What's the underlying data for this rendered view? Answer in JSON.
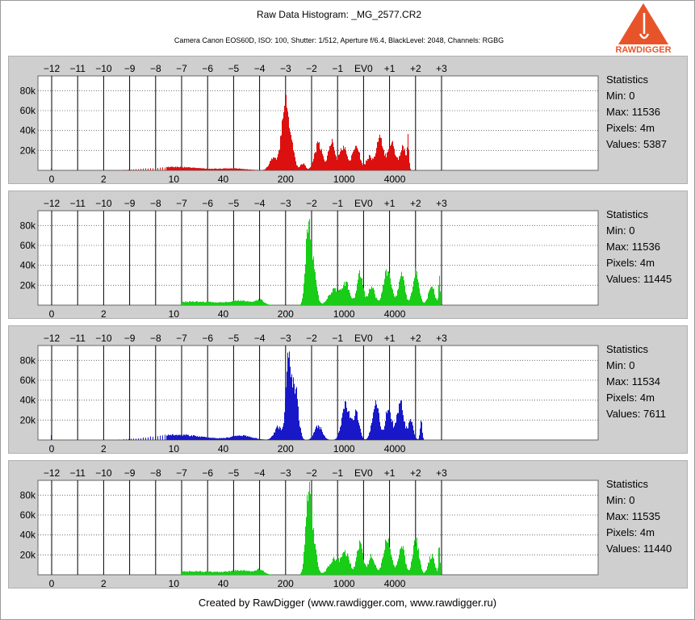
{
  "header": {
    "title": "Raw Data Histogram: _MG_2577.CR2",
    "subtitle": "Camera Canon EOS60D, ISO: 100, Shutter: 1/512, Aperture f/6.4, BlackLevel: 2048, Channels: RGBG"
  },
  "logo": {
    "text": "RAWDIGGER",
    "colors": {
      "triangle": "#e8542a",
      "text": "#e8542a"
    }
  },
  "footer": {
    "text": "Created by RawDigger (www.rawdigger.com, www.rawdigger.ru)"
  },
  "stats_labels": {
    "title": "Statistics",
    "min": "Min:",
    "max": "Max:",
    "pixels": "Pixels:",
    "values": "Values:"
  },
  "chart_data": [
    {
      "type": "bar",
      "channel": "R",
      "color": "#dd1010",
      "ev_ticks": [
        "−12",
        "−11",
        "−10",
        "−9",
        "−8",
        "−7",
        "−6",
        "−5",
        "−4",
        "−3",
        "−2",
        "−1",
        "EV0",
        "+1",
        "+2",
        "+3"
      ],
      "x_ticks": [
        "0",
        "2",
        "10",
        "40",
        "200",
        "1000",
        "4000"
      ],
      "y_ticks": [
        "20k",
        "40k",
        "60k",
        "80k"
      ],
      "ylim": [
        0,
        90000
      ],
      "stats": {
        "min": "0",
        "max": "11536",
        "pixels": "4m",
        "values": "5387"
      },
      "peaks": [
        {
          "ev": -12.0,
          "count": 4000,
          "w": 0.05
        },
        {
          "ev": -7.3,
          "count": 4000,
          "w": 1.0
        },
        {
          "ev": -5.0,
          "count": 2000,
          "w": 0.5
        },
        {
          "ev": -3.5,
          "count": 14000,
          "w": 0.14
        },
        {
          "ev": -3.05,
          "count": 78000,
          "w": 0.13
        },
        {
          "ev": -2.8,
          "count": 30000,
          "w": 0.12
        },
        {
          "ev": -2.35,
          "count": 8000,
          "w": 0.1
        },
        {
          "ev": -1.75,
          "count": 30000,
          "w": 0.15
        },
        {
          "ev": -1.25,
          "count": 33000,
          "w": 0.12
        },
        {
          "ev": -0.8,
          "count": 27000,
          "w": 0.15
        },
        {
          "ev": -0.3,
          "count": 32000,
          "w": 0.13
        },
        {
          "ev": 0.2,
          "count": 16000,
          "w": 0.12
        },
        {
          "ev": 0.6,
          "count": 37000,
          "w": 0.13
        },
        {
          "ev": 1.05,
          "count": 33000,
          "w": 0.14
        },
        {
          "ev": 1.5,
          "count": 28000,
          "w": 0.12
        },
        {
          "ev": 1.7,
          "count": 30000,
          "w": 0.03
        }
      ],
      "start_ev": -12.0,
      "end_ev": 1.8
    },
    {
      "type": "bar",
      "channel": "G",
      "color": "#18cc18",
      "ev_ticks": [
        "−12",
        "−11",
        "−10",
        "−9",
        "−8",
        "−7",
        "−6",
        "−5",
        "−4",
        "−3",
        "−2",
        "−1",
        "EV0",
        "+1",
        "+2",
        "+3"
      ],
      "x_ticks": [
        "0",
        "2",
        "10",
        "40",
        "200",
        "1000",
        "4000"
      ],
      "y_ticks": [
        "20k",
        "40k",
        "60k",
        "80k"
      ],
      "ylim": [
        0,
        90000
      ],
      "stats": {
        "min": "0",
        "max": "11536",
        "pixels": "4m",
        "values": "11445"
      },
      "peaks": [
        {
          "ev": -6.5,
          "count": 4000,
          "w": 1.2
        },
        {
          "ev": -4.7,
          "count": 4000,
          "w": 0.4
        },
        {
          "ev": -4.0,
          "count": 5000,
          "w": 0.15
        },
        {
          "ev": -2.15,
          "count": 88000,
          "w": 0.1
        },
        {
          "ev": -1.95,
          "count": 40000,
          "w": 0.12
        },
        {
          "ev": -1.15,
          "count": 18000,
          "w": 0.2
        },
        {
          "ev": -0.7,
          "count": 25000,
          "w": 0.15
        },
        {
          "ev": -0.15,
          "count": 36000,
          "w": 0.12
        },
        {
          "ev": 0.3,
          "count": 22000,
          "w": 0.12
        },
        {
          "ev": 0.9,
          "count": 40000,
          "w": 0.15
        },
        {
          "ev": 1.45,
          "count": 35000,
          "w": 0.12
        },
        {
          "ev": 2.0,
          "count": 40000,
          "w": 0.12
        },
        {
          "ev": 2.9,
          "count": 36000,
          "w": 0.03
        },
        {
          "ev": 2.6,
          "count": 22000,
          "w": 0.12
        }
      ],
      "start_ev": -7.0,
      "end_ev": 2.95
    },
    {
      "type": "bar",
      "channel": "B",
      "color": "#1818c8",
      "ev_ticks": [
        "−12",
        "−11",
        "−10",
        "−9",
        "−8",
        "−7",
        "−6",
        "−5",
        "−4",
        "−3",
        "−2",
        "−1",
        "EV0",
        "+1",
        "+2",
        "+3"
      ],
      "x_ticks": [
        "0",
        "2",
        "10",
        "40",
        "200",
        "1000",
        "4000"
      ],
      "y_ticks": [
        "20k",
        "40k",
        "60k",
        "80k"
      ],
      "ylim": [
        0,
        90000
      ],
      "stats": {
        "min": "0",
        "max": "11534",
        "pixels": "4m",
        "values": "7611"
      },
      "peaks": [
        {
          "ev": -12.0,
          "count": 7000,
          "w": 0.05
        },
        {
          "ev": -7.2,
          "count": 6000,
          "w": 1.0
        },
        {
          "ev": -4.7,
          "count": 5000,
          "w": 0.4
        },
        {
          "ev": -3.3,
          "count": 15000,
          "w": 0.15
        },
        {
          "ev": -2.9,
          "count": 91000,
          "w": 0.1
        },
        {
          "ev": -2.65,
          "count": 60000,
          "w": 0.12
        },
        {
          "ev": -1.75,
          "count": 16000,
          "w": 0.15
        },
        {
          "ev": -0.7,
          "count": 40000,
          "w": 0.15
        },
        {
          "ev": -0.3,
          "count": 30000,
          "w": 0.12
        },
        {
          "ev": 0.45,
          "count": 44000,
          "w": 0.13
        },
        {
          "ev": 0.95,
          "count": 38000,
          "w": 0.12
        },
        {
          "ev": 1.4,
          "count": 44000,
          "w": 0.13
        },
        {
          "ev": 1.8,
          "count": 22000,
          "w": 0.1
        },
        {
          "ev": 2.2,
          "count": 25000,
          "w": 0.04
        }
      ],
      "start_ev": -12.0,
      "end_ev": 2.3
    },
    {
      "type": "bar",
      "channel": "G2",
      "color": "#18cc18",
      "ev_ticks": [
        "−12",
        "−11",
        "−10",
        "−9",
        "−8",
        "−7",
        "−6",
        "−5",
        "−4",
        "−3",
        "−2",
        "−1",
        "EV0",
        "+1",
        "+2",
        "+3"
      ],
      "x_ticks": [
        "0",
        "2",
        "10",
        "40",
        "200",
        "1000",
        "4000"
      ],
      "y_ticks": [
        "20k",
        "40k",
        "60k",
        "80k"
      ],
      "ylim": [
        0,
        90000
      ],
      "stats": {
        "min": "0",
        "max": "11535",
        "pixels": "4m",
        "values": "11440"
      },
      "peaks": [
        {
          "ev": -6.5,
          "count": 4000,
          "w": 1.2
        },
        {
          "ev": -4.7,
          "count": 4000,
          "w": 0.4
        },
        {
          "ev": -4.0,
          "count": 5000,
          "w": 0.15
        },
        {
          "ev": -2.15,
          "count": 88000,
          "w": 0.1
        },
        {
          "ev": -1.95,
          "count": 40000,
          "w": 0.12
        },
        {
          "ev": -1.15,
          "count": 18000,
          "w": 0.2
        },
        {
          "ev": -0.7,
          "count": 25000,
          "w": 0.15
        },
        {
          "ev": -0.15,
          "count": 36000,
          "w": 0.12
        },
        {
          "ev": 0.3,
          "count": 22000,
          "w": 0.12
        },
        {
          "ev": 0.9,
          "count": 40000,
          "w": 0.15
        },
        {
          "ev": 1.45,
          "count": 35000,
          "w": 0.12
        },
        {
          "ev": 2.0,
          "count": 40000,
          "w": 0.12
        },
        {
          "ev": 2.9,
          "count": 36000,
          "w": 0.03
        },
        {
          "ev": 2.6,
          "count": 22000,
          "w": 0.12
        }
      ],
      "start_ev": -7.0,
      "end_ev": 2.95
    }
  ]
}
